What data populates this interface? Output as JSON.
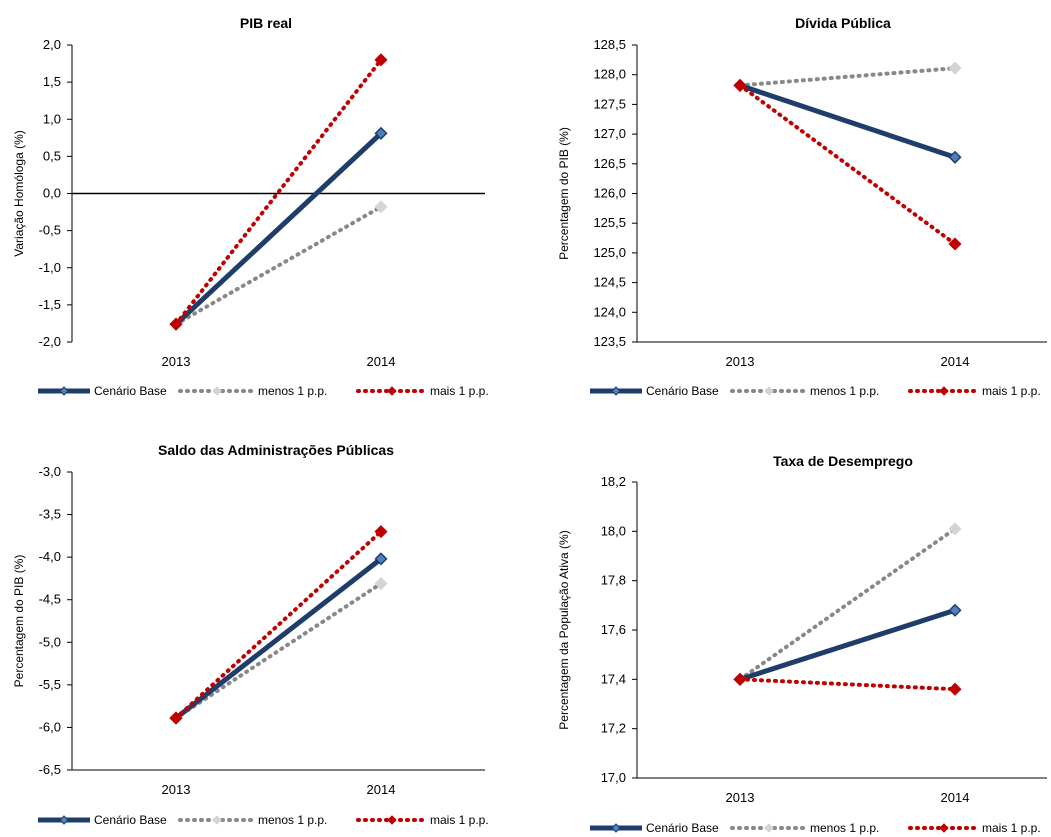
{
  "colors": {
    "base": "#1F3D6A",
    "base_marker": "#4F7FBF",
    "menos": "#888888",
    "menos_marker": "#D4D4D4",
    "mais": "#C00000",
    "axis": "#000000"
  },
  "legend": [
    "Cenário Base",
    "menos 1 p.p.",
    "mais 1 p.p."
  ],
  "chart_data": [
    {
      "type": "line",
      "title": "PIB real",
      "ylabel": "Variação Homóloga (%)",
      "categories": [
        "2013",
        "2014"
      ],
      "ylim": [
        -2.0,
        2.0
      ],
      "ytick_step": 0.5,
      "zero_line": true,
      "yticks": [
        "2,0",
        "1,5",
        "1,0",
        "0,5",
        "0,0",
        "-0,5",
        "-1,0",
        "-1,5",
        "-2,0"
      ],
      "series": [
        {
          "name": "Cenário Base",
          "values": [
            -1.76,
            0.81
          ]
        },
        {
          "name": "menos 1 p.p.",
          "values": [
            -1.76,
            -0.18
          ]
        },
        {
          "name": "mais 1 p.p.",
          "values": [
            -1.76,
            1.8
          ]
        }
      ],
      "legend_position": "bottom"
    },
    {
      "type": "line",
      "title": "Dívida Pública",
      "ylabel": "Percentagem do PIB (%)",
      "categories": [
        "2013",
        "2014"
      ],
      "ylim": [
        123.5,
        128.5
      ],
      "ytick_step": 0.5,
      "zero_line": false,
      "yticks": [
        "128,5",
        "128,0",
        "127,5",
        "127,0",
        "126,5",
        "126,0",
        "125,5",
        "125,0",
        "124,5",
        "124,0",
        "123,5"
      ],
      "series": [
        {
          "name": "Cenário Base",
          "values": [
            127.82,
            126.61
          ]
        },
        {
          "name": "menos 1 p.p.",
          "values": [
            127.82,
            128.11
          ]
        },
        {
          "name": "mais 1 p.p.",
          "values": [
            127.82,
            125.15
          ]
        }
      ],
      "legend_position": "bottom"
    },
    {
      "type": "line",
      "title": "Saldo das Administrações Públicas",
      "ylabel": "Percentagem do PIB (%)",
      "categories": [
        "2013",
        "2014"
      ],
      "ylim": [
        -6.5,
        -3.0
      ],
      "ytick_step": 0.5,
      "zero_line": false,
      "yticks": [
        "-3,0",
        "-3,5",
        "-4,0",
        "-4,5",
        "-5,0",
        "-5,5",
        "-6,0",
        "-6,5"
      ],
      "series": [
        {
          "name": "Cenário Base",
          "values": [
            -5.89,
            -4.02
          ]
        },
        {
          "name": "menos 1 p.p.",
          "values": [
            -5.89,
            -4.31
          ]
        },
        {
          "name": "mais 1 p.p.",
          "values": [
            -5.89,
            -3.7
          ]
        }
      ],
      "legend_position": "bottom"
    },
    {
      "type": "line",
      "title": "Taxa de Desemprego",
      "ylabel": "Percentagem da População Ativa (%)",
      "categories": [
        "2013",
        "2014"
      ],
      "ylim": [
        17.0,
        18.2
      ],
      "ytick_step": 0.2,
      "zero_line": false,
      "yticks": [
        "18,2",
        "18,0",
        "17,8",
        "17,6",
        "17,4",
        "17,2",
        "17,0"
      ],
      "series": [
        {
          "name": "Cenário Base",
          "values": [
            17.4,
            17.68
          ]
        },
        {
          "name": "menos 1 p.p.",
          "values": [
            17.4,
            18.01
          ]
        },
        {
          "name": "mais 1 p.p.",
          "values": [
            17.4,
            17.36
          ]
        }
      ],
      "legend_position": "bottom"
    }
  ]
}
